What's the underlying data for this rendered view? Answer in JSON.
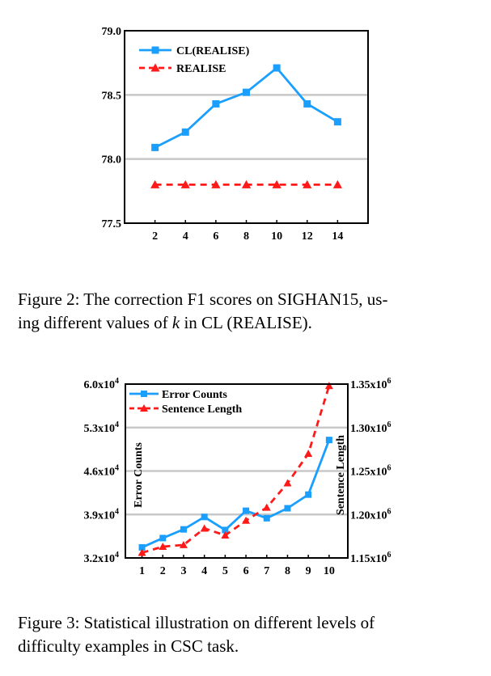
{
  "figure2": {
    "caption_prefix": "Figure 2:  The correction F1 scores on SIGHAN15, us-",
    "caption_line2_a": "ing different values of ",
    "caption_k": "k",
    "caption_line2_b": " in CL (REALISE).",
    "chart_data": {
      "type": "line",
      "x": [
        2,
        4,
        6,
        8,
        10,
        12,
        14
      ],
      "xticks": [
        "2",
        "4",
        "6",
        "8",
        "10",
        "12",
        "14"
      ],
      "ylim": [
        77.5,
        79.0
      ],
      "yticks": [
        "79.0",
        "78.5",
        "78.0",
        "77.5"
      ],
      "grid": true,
      "legend_placement": "top-left",
      "series": [
        {
          "name": "CL(REALISE)",
          "values": [
            78.09,
            78.21,
            78.43,
            78.52,
            78.71,
            78.43,
            78.29
          ],
          "color": "#1a9fff",
          "marker": "square",
          "style": "solid"
        },
        {
          "name": "REALISE",
          "values": [
            77.8,
            77.8,
            77.8,
            77.8,
            77.8,
            77.8,
            77.8
          ],
          "color": "#ff1a1a",
          "marker": "triangle",
          "style": "dashed"
        }
      ]
    }
  },
  "figure3": {
    "caption_line1": "Figure 3:  Statistical illustration on different levels of",
    "caption_line2": "difficulty examples in CSC task.",
    "chart_data": {
      "type": "line",
      "x": [
        1,
        2,
        3,
        4,
        5,
        6,
        7,
        8,
        9,
        10
      ],
      "xticks": [
        "1",
        "2",
        "3",
        "4",
        "5",
        "6",
        "7",
        "8",
        "9",
        "10"
      ],
      "ylabel_left": "Error Counts",
      "ylabel_right": "Sentence Length",
      "ylim_left": [
        32000,
        60000
      ],
      "ylim_right": [
        1150000,
        1350000
      ],
      "yticks_left": [
        {
          "base": "6.0x10",
          "exp": "4"
        },
        {
          "base": "5.3x10",
          "exp": "4"
        },
        {
          "base": "4.6x10",
          "exp": "4"
        },
        {
          "base": "3.9x10",
          "exp": "4"
        },
        {
          "base": "3.2x10",
          "exp": "4"
        }
      ],
      "yticks_right": [
        {
          "base": "1.35x10",
          "exp": "6"
        },
        {
          "base": "1.30x10",
          "exp": "6"
        },
        {
          "base": "1.25x10",
          "exp": "6"
        },
        {
          "base": "1.20x10",
          "exp": "6"
        },
        {
          "base": "1.15x10",
          "exp": "6"
        }
      ],
      "grid": true,
      "legend_placement": "top-left",
      "series": [
        {
          "name": "Error Counts",
          "axis": "left",
          "values": [
            33700,
            35200,
            36600,
            38600,
            36500,
            39600,
            38400,
            40000,
            42200,
            51000
          ],
          "color": "#1a9fff",
          "marker": "square",
          "style": "solid"
        },
        {
          "name": "Sentence Length",
          "axis": "right",
          "values": [
            1156000,
            1163000,
            1165000,
            1184000,
            1176000,
            1193000,
            1208000,
            1236000,
            1270000,
            1348000
          ],
          "color": "#ff1a1a",
          "marker": "triangle",
          "style": "dashed"
        }
      ]
    }
  }
}
